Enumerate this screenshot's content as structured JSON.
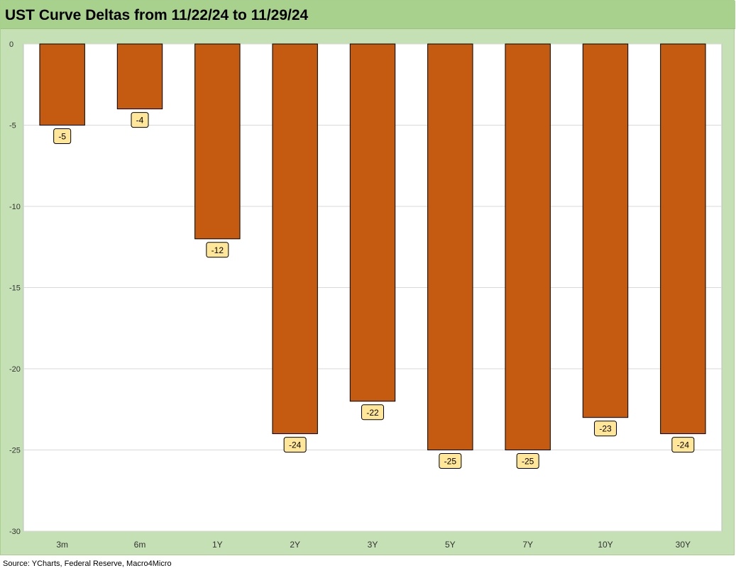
{
  "title": "UST Curve Deltas from 11/22/24 to 11/29/24",
  "source": "Source: YCharts, Federal Reserve, Macro4Micro",
  "colors": {
    "bar": "#c55a11",
    "frame": "#c5e0b4",
    "title_bar": "#a9d18e",
    "plot_bg": "#ffffff",
    "grid": "#d9d9d9",
    "label_fill": "#ffe699"
  },
  "chart_data": {
    "type": "bar",
    "title": "UST Curve Deltas from 11/22/24 to 11/29/24",
    "xlabel": "",
    "ylabel": "",
    "categories": [
      "3m",
      "6m",
      "1Y",
      "2Y",
      "3Y",
      "5Y",
      "7Y",
      "10Y",
      "30Y"
    ],
    "values": [
      -5,
      -4,
      -12,
      -24,
      -22,
      -25,
      -25,
      -23,
      -24
    ],
    "data_labels": [
      "-5",
      "-4",
      "-12",
      "-24",
      "-22",
      "-25",
      "-25",
      "-23",
      "-24"
    ],
    "ylim": [
      -30,
      0
    ],
    "yticks": [
      0,
      -5,
      -10,
      -15,
      -20,
      -25,
      -30
    ],
    "grid": "horizontal",
    "legend": "none"
  }
}
